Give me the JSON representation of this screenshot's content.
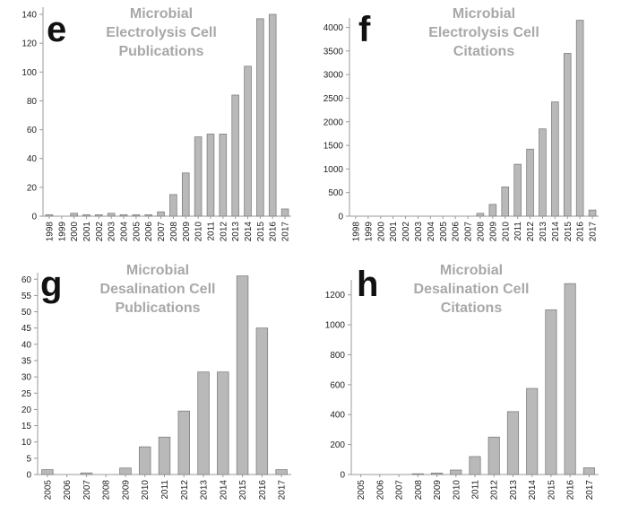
{
  "colors": {
    "bar_fill": "#b9b9b9",
    "bar_stroke": "#7f7f7f",
    "axis": "#9a9a9a",
    "title": "#a8a8a8"
  },
  "chart_data": [
    {
      "type": "bar",
      "panel_label": "e",
      "title_lines": [
        "Microbial",
        "Electrolysis Cell",
        "Publications"
      ],
      "categories": [
        "1998",
        "1999",
        "2000",
        "2001",
        "2002",
        "2003",
        "2004",
        "2005",
        "2006",
        "2007",
        "2008",
        "2009",
        "2010",
        "2011",
        "2012",
        "2013",
        "2014",
        "2015",
        "2016",
        "2017"
      ],
      "values": [
        1,
        0,
        2,
        1,
        1,
        2,
        1,
        1,
        1,
        3,
        15,
        30,
        55,
        57,
        57,
        84,
        104,
        137,
        140,
        5
      ],
      "yticks": [
        0,
        20,
        40,
        60,
        80,
        100,
        120,
        140
      ],
      "ylim": [
        0,
        145
      ],
      "grid": false
    },
    {
      "type": "bar",
      "panel_label": "f",
      "title_lines": [
        "Microbial",
        "Electrolysis Cell",
        "Citations"
      ],
      "categories": [
        "1998",
        "1999",
        "2000",
        "2001",
        "2002",
        "2003",
        "2004",
        "2005",
        "2006",
        "2007",
        "2008",
        "2009",
        "2010",
        "2011",
        "2012",
        "2013",
        "2014",
        "2015",
        "2016",
        "2017"
      ],
      "values": [
        0,
        0,
        0,
        0,
        0,
        0,
        0,
        0,
        0,
        0,
        60,
        250,
        620,
        1100,
        1420,
        1850,
        2420,
        3450,
        4150,
        130
      ],
      "yticks": [
        0,
        500,
        1000,
        1500,
        2000,
        2500,
        3000,
        3500,
        4000
      ],
      "ylim": [
        0,
        4200
      ],
      "grid": false
    },
    {
      "type": "bar",
      "panel_label": "g",
      "title_lines": [
        "Microbial",
        "Desalination Cell",
        "Publications"
      ],
      "categories": [
        "2005",
        "2006",
        "2007",
        "2008",
        "2009",
        "2010",
        "2011",
        "2012",
        "2013",
        "2014",
        "2015",
        "2016",
        "2017"
      ],
      "values": [
        1.5,
        0,
        0.5,
        0,
        2,
        8.5,
        11.5,
        19.5,
        31.5,
        31.5,
        61,
        45,
        1.5
      ],
      "yticks": [
        0,
        5,
        10,
        15,
        20,
        25,
        30,
        35,
        40,
        45,
        50,
        55,
        60
      ],
      "ylim": [
        0,
        62
      ],
      "grid": false
    },
    {
      "type": "bar",
      "panel_label": "h",
      "title_lines": [
        "Microbial",
        "Desalination Cell",
        "Citations"
      ],
      "categories": [
        "2005",
        "2006",
        "2007",
        "2008",
        "2009",
        "2010",
        "2011",
        "2012",
        "2013",
        "2014",
        "2015",
        "2016",
        "2017"
      ],
      "values": [
        0,
        0,
        0,
        5,
        10,
        30,
        120,
        250,
        420,
        575,
        1100,
        1275,
        45
      ],
      "yticks": [
        0,
        200,
        400,
        600,
        800,
        1000,
        1200
      ],
      "ylim": [
        0,
        1300
      ],
      "grid": false
    }
  ]
}
